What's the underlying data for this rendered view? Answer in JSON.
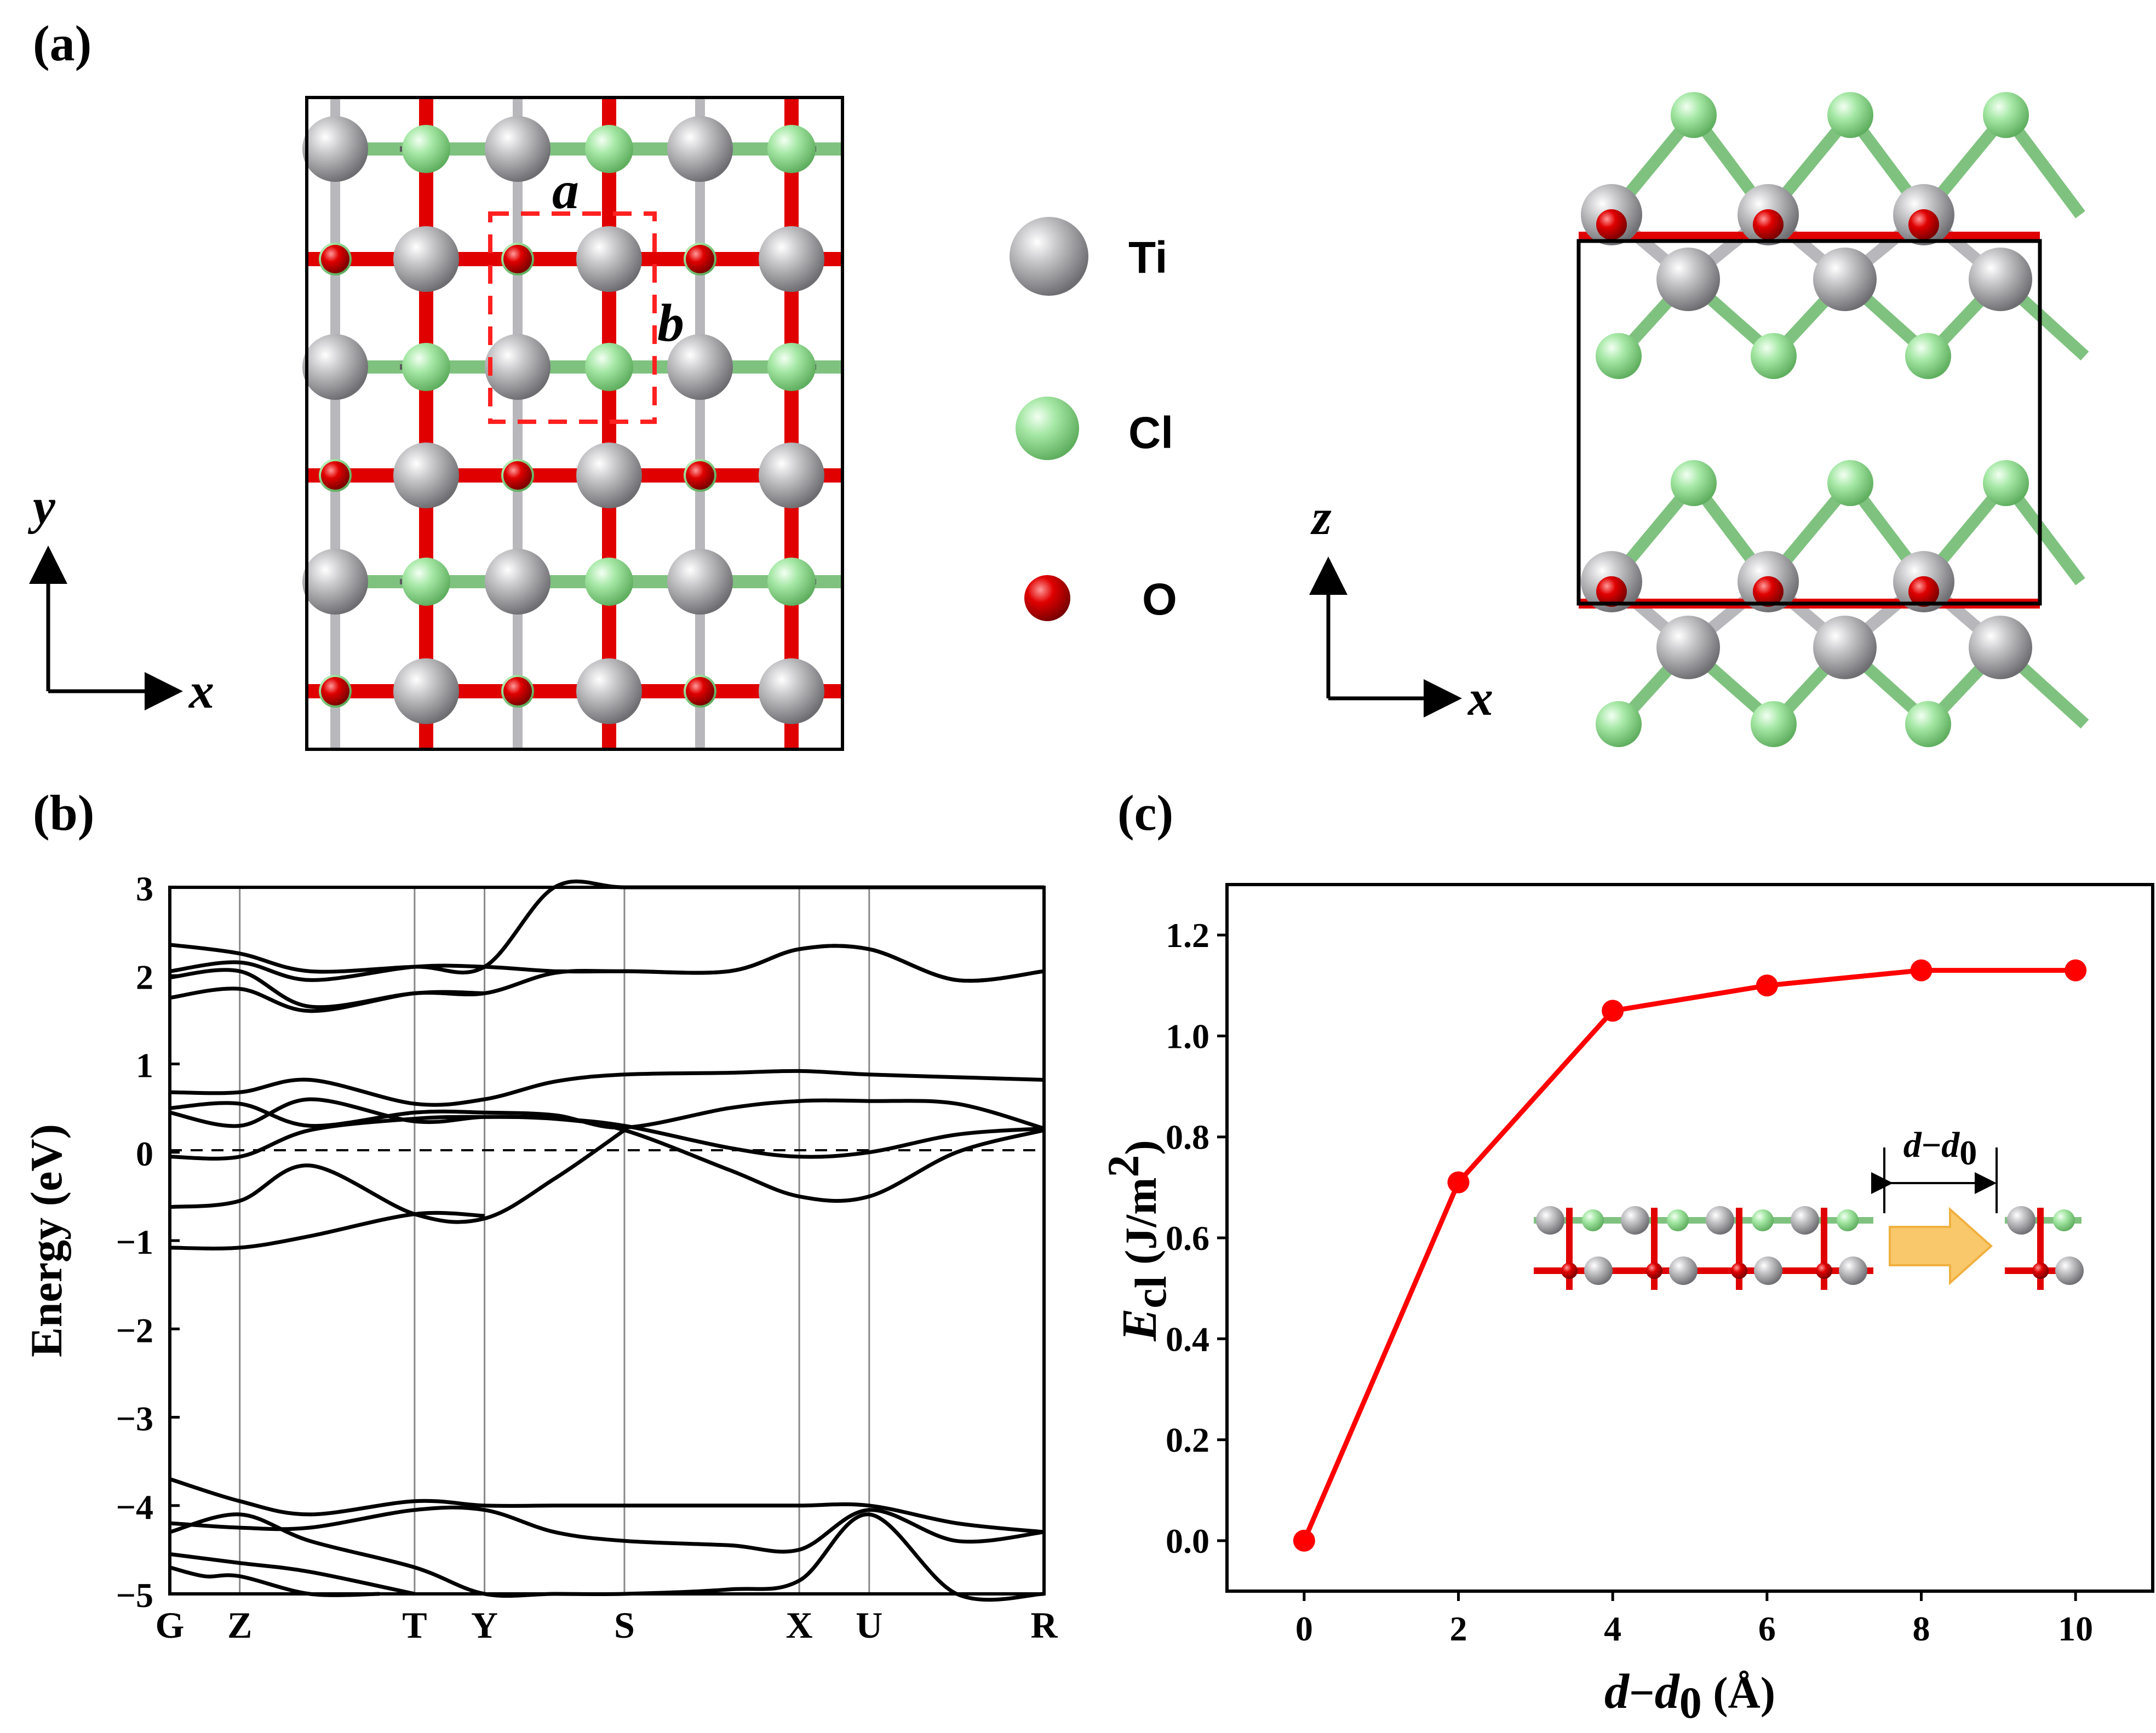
{
  "figure": {
    "panel_a": "(a)",
    "panel_b": "(b)",
    "panel_c": "(c)"
  },
  "structure": {
    "lattice_a": "a",
    "lattice_b": "b",
    "top_axis_y": "y",
    "top_axis_x": "x",
    "side_axis_z": "z",
    "side_axis_x": "x",
    "legend": [
      {
        "label": "Ti",
        "color": "#a9a9ad"
      },
      {
        "label": "Cl",
        "color": "#a6e8a6"
      },
      {
        "label": "O",
        "color": "#e00000"
      }
    ],
    "colors": {
      "ti": "#a9a9ad",
      "cl": "#a6e8a6",
      "o": "#e00000",
      "dashed_cell": "#ff2020"
    }
  },
  "chart_data": [
    {
      "type": "line",
      "title": "",
      "ylabel": "Energy (eV)",
      "xlabel": "",
      "ylim": [
        -5,
        3
      ],
      "yticks": [
        "3",
        "2",
        "1",
        "0",
        "−1",
        "−2",
        "−3",
        "−4",
        "−5"
      ],
      "ytick_values": [
        3,
        2,
        1,
        0,
        -1,
        -2,
        -3,
        -4,
        -5
      ],
      "kpoints": [
        "G",
        "Z",
        "T",
        "Y",
        "S",
        "X",
        "U",
        "R"
      ],
      "kpoint_positions": [
        0,
        0.4,
        1.4,
        1.8,
        2.6,
        3.6,
        4.0,
        5.0
      ],
      "fermi_level": 0,
      "bands": [
        {
          "name": "cond-1",
          "x": [
            0,
            0.4,
            0.8,
            1.4,
            1.8,
            2.2,
            2.6,
            3.2,
            3.6,
            4.0,
            4.5,
            5.0
          ],
          "y": [
            2.35,
            2.25,
            2.05,
            2.1,
            2.1,
            3.0,
            3.2,
            3.2,
            3.2,
            3.2,
            3.1,
            3.1
          ]
        },
        {
          "name": "cond-2",
          "x": [
            0,
            0.4,
            0.8,
            1.4,
            1.8,
            2.2,
            2.6,
            3.2,
            3.6,
            4.0,
            4.5,
            5.0
          ],
          "y": [
            2.05,
            2.15,
            1.95,
            2.1,
            2.1,
            2.05,
            2.05,
            2.05,
            2.3,
            2.3,
            1.95,
            2.05
          ]
        },
        {
          "name": "cond-3",
          "x": [
            0,
            0.4,
            0.8,
            1.4,
            1.8,
            2.2,
            2.6,
            3.2,
            3.6,
            4.0,
            4.5,
            5.0
          ],
          "y": [
            1.98,
            2.05,
            1.65,
            1.8,
            1.8,
            2.03,
            2.05,
            2.05,
            2.3,
            2.3,
            1.95,
            2.05
          ]
        },
        {
          "name": "cond-4",
          "x": [
            0,
            0.4,
            0.8,
            1.4,
            1.8
          ],
          "y": [
            1.75,
            1.85,
            1.6,
            1.8,
            1.8
          ]
        },
        {
          "name": "band-5",
          "x": [
            0,
            0.4,
            0.8,
            1.4,
            1.8,
            2.2,
            2.6,
            3.2,
            3.6,
            4.0,
            4.5,
            5.0
          ],
          "y": [
            0.68,
            0.68,
            0.82,
            0.55,
            0.6,
            0.8,
            0.88,
            0.9,
            0.92,
            0.88,
            0.85,
            0.82
          ]
        },
        {
          "name": "band-6",
          "x": [
            0,
            0.4,
            0.8,
            1.4,
            1.8,
            2.2,
            2.6,
            3.2,
            3.6,
            4.0,
            4.5,
            5.0
          ],
          "y": [
            0.5,
            0.55,
            0.3,
            0.45,
            0.45,
            0.42,
            0.28,
            0.5,
            0.58,
            0.58,
            0.55,
            0.27
          ]
        },
        {
          "name": "band-7",
          "x": [
            0,
            0.4,
            0.8,
            1.4,
            1.8,
            2.2,
            2.6,
            3.2,
            3.6,
            4.0,
            4.5,
            5.0
          ],
          "y": [
            0.45,
            0.3,
            0.6,
            0.35,
            0.4,
            0.38,
            0.3,
            0.05,
            -0.05,
            0.0,
            0.2,
            0.27
          ]
        },
        {
          "name": "band-8",
          "x": [
            0,
            0.4,
            0.8,
            1.4,
            1.8,
            2.2,
            2.6,
            3.2,
            3.6,
            4.0,
            4.5,
            5.0
          ],
          "y": [
            -0.05,
            -0.05,
            0.25,
            0.38,
            0.4,
            0.38,
            0.25,
            -0.2,
            -0.5,
            -0.5,
            0.0,
            0.25
          ]
        },
        {
          "name": "band-9",
          "x": [
            0,
            0.4,
            0.8,
            1.4,
            1.8,
            2.2,
            2.6
          ],
          "y": [
            -0.62,
            -0.55,
            -0.15,
            -0.7,
            -0.75,
            -0.3,
            0.25
          ]
        },
        {
          "name": "band-10",
          "x": [
            0,
            0.4,
            0.8,
            1.4,
            1.8
          ],
          "y": [
            -1.08,
            -1.08,
            -0.95,
            -0.7,
            -0.72
          ]
        },
        {
          "name": "val-1",
          "x": [
            0,
            0.4,
            0.8,
            1.4,
            1.8,
            2.2,
            2.6,
            3.2,
            3.6,
            4.0,
            4.5,
            5.0
          ],
          "y": [
            -3.7,
            -3.95,
            -4.1,
            -3.95,
            -4.0,
            -4.0,
            -4.0,
            -4.0,
            -4.0,
            -4.0,
            -4.2,
            -4.3
          ]
        },
        {
          "name": "val-2",
          "x": [
            0,
            0.4,
            0.8,
            1.4,
            1.8,
            2.2,
            2.6,
            3.2,
            3.6,
            4.0,
            4.5,
            5.0
          ],
          "y": [
            -4.2,
            -4.25,
            -4.25,
            -4.05,
            -4.05,
            -4.3,
            -4.4,
            -4.45,
            -4.5,
            -4.05,
            -4.4,
            -4.3
          ]
        },
        {
          "name": "val-3",
          "x": [
            0,
            0.4,
            0.8,
            1.4,
            1.8,
            2.2,
            2.6,
            3.2,
            3.6,
            4.0,
            4.5,
            5.0
          ],
          "y": [
            -4.3,
            -4.1,
            -4.4,
            -4.7,
            -5.05,
            -5.05,
            -5.05,
            -4.95,
            -4.85,
            -4.1,
            -5.1,
            -5.1
          ]
        },
        {
          "name": "val-4",
          "x": [
            0,
            0.4,
            0.8,
            1.4
          ],
          "y": [
            -4.55,
            -4.65,
            -4.75,
            -5.1
          ]
        },
        {
          "name": "val-5",
          "x": [
            0,
            0.2,
            0.4,
            0.8,
            1.2
          ],
          "y": [
            -4.7,
            -4.8,
            -4.8,
            -5.0,
            -5.1
          ]
        }
      ]
    },
    {
      "type": "line",
      "title": "",
      "xlabel": "d−d0 (Å)",
      "ylabel": "Ecl (J/m2)",
      "x": [
        0,
        2,
        4,
        6,
        8,
        10
      ],
      "y": [
        0.0,
        0.71,
        1.05,
        1.1,
        1.13,
        1.13
      ],
      "xlim": [
        -1,
        11
      ],
      "ylim": [
        -0.1,
        1.3
      ],
      "xticks": [
        "0",
        "2",
        "4",
        "6",
        "8",
        "10"
      ],
      "xtick_values": [
        0,
        2,
        4,
        6,
        8,
        10
      ],
      "yticks": [
        "0.0",
        "0.2",
        "0.4",
        "0.6",
        "0.8",
        "1.0",
        "1.2"
      ],
      "ytick_values": [
        0.0,
        0.2,
        0.4,
        0.6,
        0.8,
        1.0,
        1.2
      ],
      "line_color": "#ff0000",
      "inset_label": "d−d0"
    }
  ],
  "labels_c": {
    "y_E": "E",
    "y_sub": "cl",
    "y_unit": " (J/m",
    "y_sup": "2",
    "y_close": ")",
    "x_d": "d",
    "x_minus": "−",
    "x_d2": "d",
    "x_sub": "0",
    "x_unit": " (Å)",
    "inset_d": "d",
    "inset_minus": "−",
    "inset_d2": "d",
    "inset_sub": "0"
  }
}
